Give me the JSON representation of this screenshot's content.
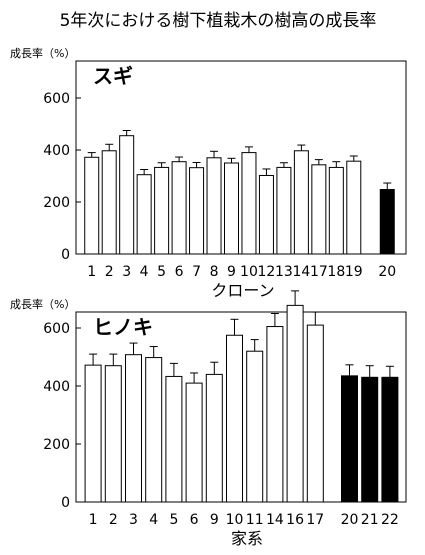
{
  "figure_title": "5年次における樹下植栽木の樹高の成長率",
  "chart_data": [
    {
      "type": "bar",
      "panel_label": "スギ",
      "ylabel": "成長率（%）",
      "xlabel": "クローン",
      "ylim": [
        0,
        700
      ],
      "yticks": [
        0,
        200,
        400,
        600
      ],
      "categories": [
        "1",
        "2",
        "3",
        "4",
        "5",
        "6",
        "7",
        "8",
        "9",
        "10",
        "12",
        "13",
        "14",
        "17",
        "18",
        "19",
        "20"
      ],
      "values": [
        372,
        397,
        455,
        305,
        333,
        355,
        332,
        370,
        350,
        390,
        302,
        333,
        397,
        343,
        333,
        357,
        248
      ],
      "errors": [
        18,
        25,
        20,
        20,
        18,
        18,
        20,
        25,
        18,
        22,
        25,
        18,
        22,
        20,
        22,
        20,
        25
      ],
      "fill": [
        "white",
        "white",
        "white",
        "white",
        "white",
        "white",
        "white",
        "white",
        "white",
        "white",
        "white",
        "white",
        "white",
        "white",
        "white",
        "white",
        "black"
      ],
      "grid": false
    },
    {
      "type": "bar",
      "panel_label": "ヒノキ",
      "ylabel": "成長率（%）",
      "xlabel": "家系",
      "ylim": [
        0,
        800
      ],
      "yticks": [
        0,
        200,
        400,
        600
      ],
      "categories": [
        "1",
        "2",
        "3",
        "4",
        "5",
        "6",
        "9",
        "10",
        "11",
        "14",
        "16",
        "17",
        "20",
        "21",
        "22"
      ],
      "values": [
        472,
        470,
        508,
        498,
        433,
        410,
        440,
        575,
        520,
        605,
        678,
        610,
        435,
        430,
        430
      ],
      "errors": [
        38,
        40,
        40,
        38,
        45,
        35,
        42,
        55,
        40,
        45,
        50,
        45,
        38,
        40,
        38
      ],
      "fill": [
        "white",
        "white",
        "white",
        "white",
        "white",
        "white",
        "white",
        "white",
        "white",
        "white",
        "white",
        "white",
        "black",
        "black",
        "black"
      ],
      "grid": false
    }
  ]
}
